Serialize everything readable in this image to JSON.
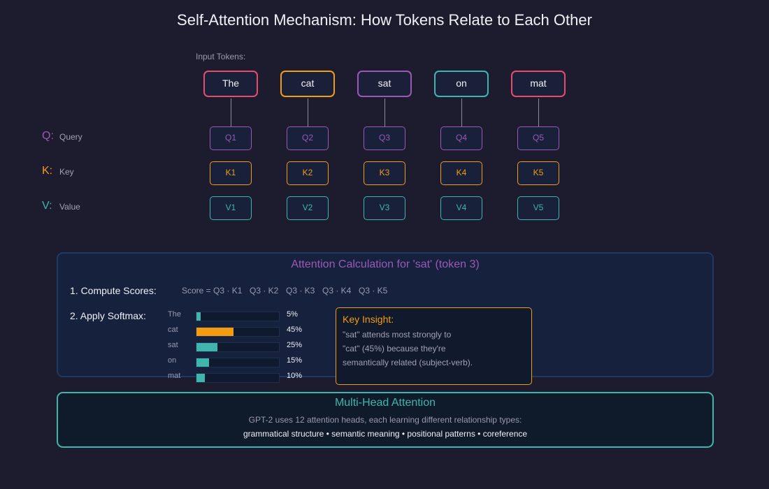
{
  "title": "Self-Attention Mechanism: How Tokens Relate to Each Other",
  "input_label": "Input Tokens:",
  "tokens": [
    {
      "text": "The",
      "color": "#e74c6c"
    },
    {
      "text": "cat",
      "color": "#f39c12"
    },
    {
      "text": "sat",
      "color": "#9b59b6"
    },
    {
      "text": "on",
      "color": "#3fb6ad"
    },
    {
      "text": "mat",
      "color": "#e74c6c"
    }
  ],
  "rows": {
    "q": {
      "letter": "Q:",
      "name": "Query",
      "color": "#9b59b6",
      "items": [
        "Q1",
        "Q2",
        "Q3",
        "Q4",
        "Q5"
      ]
    },
    "k": {
      "letter": "K:",
      "name": "Key",
      "color": "#f39c12",
      "items": [
        "K1",
        "K2",
        "K3",
        "K4",
        "K5"
      ]
    },
    "v": {
      "letter": "V:",
      "name": "Value",
      "color": "#3fb6ad",
      "items": [
        "V1",
        "V2",
        "V3",
        "V4",
        "V5"
      ]
    }
  },
  "calc": {
    "title": "Attention Calculation for 'sat' (token 3)",
    "step1": "1. Compute Scores:",
    "scores": [
      "Score = Q3 · K1",
      "Q3 · K2",
      "Q3 · K3",
      "Q3 · K4",
      "Q3 · K5"
    ],
    "step2": "2. Apply Softmax:",
    "bars": [
      {
        "label": "The",
        "value": 5,
        "text": "5%",
        "color": "#3fb6ad"
      },
      {
        "label": "cat",
        "value": 45,
        "text": "45%",
        "color": "#f39c12"
      },
      {
        "label": "sat",
        "value": 25,
        "text": "25%",
        "color": "#3fb6ad"
      },
      {
        "label": "on",
        "value": 15,
        "text": "15%",
        "color": "#3fb6ad"
      },
      {
        "label": "mat",
        "value": 10,
        "text": "10%",
        "color": "#3fb6ad"
      }
    ]
  },
  "insight": {
    "title": "Key Insight:",
    "lines": [
      "\"sat\" attends most strongly to",
      "\"cat\" (45%) because they're",
      "semantically related (subject-verb)."
    ]
  },
  "multihead": {
    "title": "Multi-Head Attention",
    "description": "GPT-2 uses 12 attention heads, each learning different relationship types:",
    "types": "grammatical structure • semantic meaning • positional patterns • coreference"
  }
}
